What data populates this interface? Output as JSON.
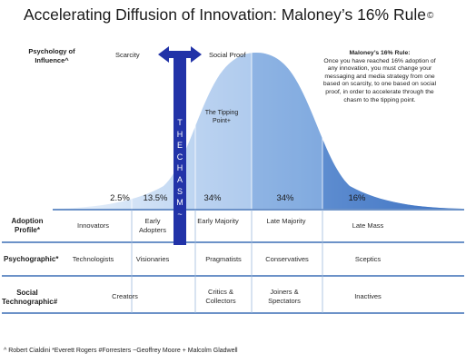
{
  "title": "Accelerating Diffusion of Innovation: Maloney’s 16% Rule",
  "title_mark": "©",
  "psychology_label": "Psychology of Influence^",
  "scarcity_label": "Scarcity",
  "social_proof_label": "Social Proof",
  "tipping_point": "The Tipping Point+",
  "chasm_letters": [
    "T",
    "H",
    "E",
    "C",
    "H",
    "A",
    "S",
    "M",
    "~"
  ],
  "note": {
    "title": "Maloney’s 16% Rule:",
    "body": "Once you have reached 16% adoption of any innovation, you must change your messaging and media strategy from one based on scarcity, to one based on social proof, in order to accelerate through the chasm to the tipping point."
  },
  "percentages": [
    "2.5%",
    "13.5%",
    "34%",
    "34%",
    "16%"
  ],
  "rows": [
    {
      "label": "Adoption Profile*",
      "cells": [
        "Innovators",
        "Early Adopters",
        "Early Majority",
        "Late Majority",
        "Late Mass"
      ]
    },
    {
      "label": "Psychographic*",
      "cells": [
        "Technologists",
        "Visionaries",
        "Pragmatists",
        "Conservatives",
        "Sceptics"
      ]
    },
    {
      "label": "Social Technographic#",
      "cells": [
        "Creators",
        "Critics & Collectors",
        "Joiners & Spectators",
        "Inactives"
      ]
    }
  ],
  "footer": "^ Robert Cialdini *Everett Rogers #Forresters ~Geoffrey Moore + Malcolm Gladwell",
  "colors": {
    "curve_light": "#dce9f8",
    "curve_dark": "#4f83cc",
    "chasm": "#2233a8",
    "lines": "#3b6fb6"
  }
}
